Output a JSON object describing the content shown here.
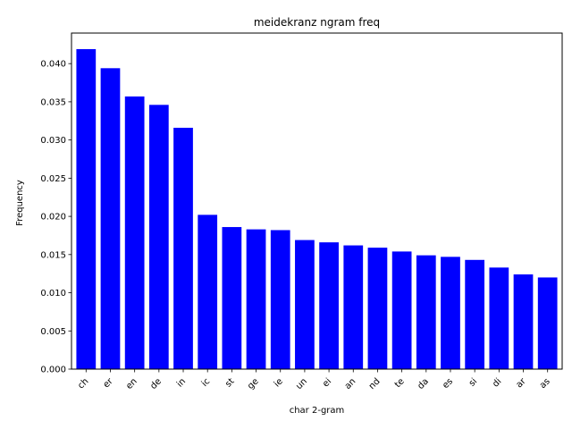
{
  "chart_data": {
    "type": "bar",
    "title": "meidekranz ngram freq",
    "xlabel": "char 2-gram",
    "ylabel": "Frequency",
    "categories": [
      "ch",
      "er",
      "en",
      "de",
      "in",
      "ic",
      "st",
      "ge",
      "ie",
      "un",
      "ei",
      "an",
      "nd",
      "te",
      "da",
      "es",
      "si",
      "di",
      "ar",
      "as"
    ],
    "values": [
      0.0419,
      0.0394,
      0.0357,
      0.0346,
      0.0316,
      0.0202,
      0.0186,
      0.0183,
      0.0182,
      0.0169,
      0.0166,
      0.0162,
      0.0159,
      0.0154,
      0.0149,
      0.0147,
      0.0143,
      0.0133,
      0.0124,
      0.012
    ],
    "ylim": [
      0,
      0.044
    ],
    "yticks": [
      "0.000",
      "0.005",
      "0.010",
      "0.015",
      "0.020",
      "0.025",
      "0.030",
      "0.035",
      "0.040"
    ],
    "bar_color": "#0000ff",
    "grid": false,
    "legend": "none"
  }
}
